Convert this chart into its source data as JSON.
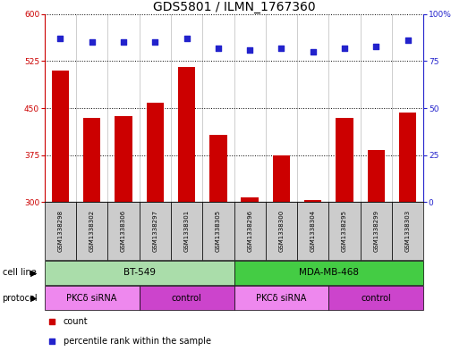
{
  "title": "GDS5801 / ILMN_1767360",
  "samples": [
    "GSM1338298",
    "GSM1338302",
    "GSM1338306",
    "GSM1338297",
    "GSM1338301",
    "GSM1338305",
    "GSM1338296",
    "GSM1338300",
    "GSM1338304",
    "GSM1338295",
    "GSM1338299",
    "GSM1338303"
  ],
  "counts": [
    510,
    435,
    437,
    458,
    515,
    408,
    307,
    375,
    304,
    435,
    383,
    443
  ],
  "percentiles": [
    87,
    85,
    85,
    85,
    87,
    82,
    81,
    82,
    80,
    82,
    83,
    86
  ],
  "ylim_left": [
    300,
    600
  ],
  "ylim_right": [
    0,
    100
  ],
  "yticks_left": [
    300,
    375,
    450,
    525,
    600
  ],
  "yticks_right": [
    0,
    25,
    50,
    75,
    100
  ],
  "bar_color": "#cc0000",
  "dot_color": "#2222cc",
  "cell_lines": [
    {
      "label": "BT-549",
      "start": 0,
      "end": 5,
      "color": "#aaddaa"
    },
    {
      "label": "MDA-MB-468",
      "start": 6,
      "end": 11,
      "color": "#44cc44"
    }
  ],
  "protocols": [
    {
      "label": "PKCδ siRNA",
      "start": 0,
      "end": 2,
      "color": "#ee88ee"
    },
    {
      "label": "control",
      "start": 3,
      "end": 5,
      "color": "#cc44cc"
    },
    {
      "label": "PKCδ siRNA",
      "start": 6,
      "end": 8,
      "color": "#ee88ee"
    },
    {
      "label": "control",
      "start": 9,
      "end": 11,
      "color": "#cc44cc"
    }
  ],
  "left_axis_color": "#cc0000",
  "right_axis_color": "#2222cc",
  "sample_box_color": "#cccccc",
  "title_fontsize": 10,
  "tick_fontsize": 6.5,
  "sample_fontsize": 5.0,
  "row_label_fontsize": 7,
  "cell_fontsize": 7.5,
  "proto_fontsize": 7,
  "legend_fontsize": 7
}
